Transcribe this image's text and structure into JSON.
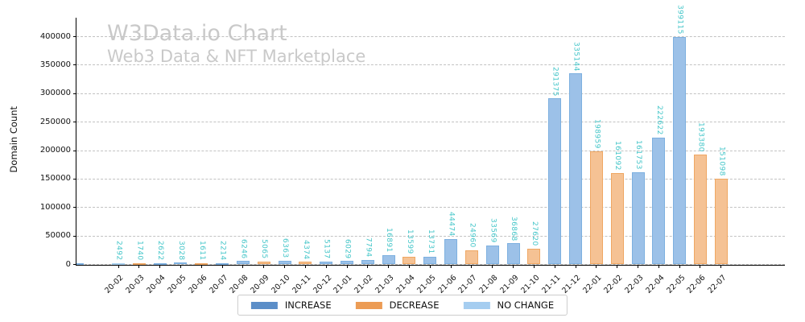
{
  "watermark": {
    "title": "W3Data.io Chart",
    "subtitle": "Web3 Data & NFT Marketplace"
  },
  "axes": {
    "ylabel": "Domain Count",
    "yticks": [
      0,
      50000,
      100000,
      150000,
      200000,
      250000,
      300000,
      350000,
      400000
    ]
  },
  "legend": [
    {
      "key": "increase",
      "label": "INCREASE",
      "color": "#5b8ec8"
    },
    {
      "key": "decrease",
      "label": "DECREASE",
      "color": "#ec9c55"
    },
    {
      "key": "no_change",
      "label": "NO CHANGE",
      "color": "#a5cdf0"
    }
  ],
  "chart_data": {
    "type": "bar",
    "title": "W3Data.io Chart",
    "subtitle": "Web3 Data & NFT Marketplace",
    "xlabel": "",
    "ylabel": "Domain Count",
    "ylim": [
      0,
      430000
    ],
    "grid": "horizontal-dashed",
    "legend_position": "bottom-center",
    "value_label_color": "#45c6c9",
    "value_label_rotation": "vertical",
    "categories": [
      "20-02",
      "20-03",
      "20-04",
      "20-05",
      "20-06",
      "20-07",
      "20-08",
      "20-09",
      "20-10",
      "20-11",
      "20-12",
      "21-01",
      "21-02",
      "21-03",
      "21-04",
      "21-05",
      "21-06",
      "21-07",
      "21-08",
      "21-09",
      "21-10",
      "21-11",
      "21-12",
      "22-01",
      "22-02",
      "22-03",
      "22-04",
      "22-05",
      "22-06",
      "22-07"
    ],
    "values": [
      2492,
      1740,
      2622,
      3028,
      1611,
      2214,
      6246,
      5065,
      6363,
      4374,
      5137,
      6029,
      7794,
      16891,
      13599,
      13731,
      44474,
      24960,
      33569,
      36868,
      27620,
      291375,
      335144,
      198959,
      161092,
      161753,
      222622,
      399115,
      193380,
      151098
    ],
    "changes": [
      "no_change",
      "decrease",
      "increase",
      "increase",
      "decrease",
      "increase",
      "increase",
      "decrease",
      "increase",
      "decrease",
      "increase",
      "increase",
      "increase",
      "increase",
      "decrease",
      "increase",
      "increase",
      "decrease",
      "increase",
      "increase",
      "decrease",
      "increase",
      "increase",
      "decrease",
      "decrease",
      "increase",
      "increase",
      "increase",
      "decrease",
      "decrease"
    ],
    "partial_left_bar": {
      "series": "increase",
      "approx_value": 2500
    },
    "bar_colors": {
      "increase": {
        "fill": "#9cc1e8",
        "edge": "#7db0e0"
      },
      "decrease": {
        "fill": "#f5c294",
        "edge": "#efa763"
      },
      "no_change": {
        "fill": "#bfdcf4",
        "edge": "#a8d0ef"
      }
    }
  }
}
